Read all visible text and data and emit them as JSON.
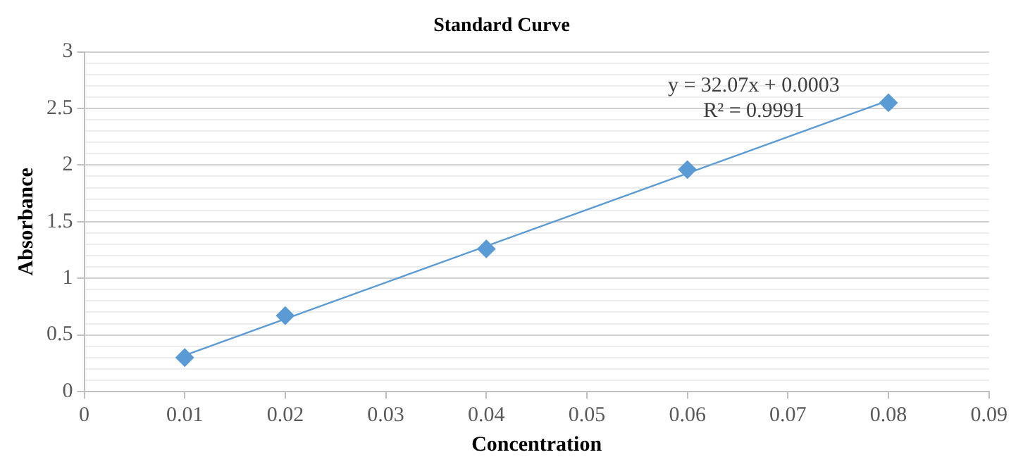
{
  "chart_data": {
    "type": "scatter",
    "title": "Standard Curve",
    "xlabel": "Concentration",
    "ylabel": "Absorbance",
    "annotations": [
      "y = 32.07x + 0.0003",
      "R² = 0.9991"
    ],
    "series": [
      {
        "color": "#5b9bd5",
        "marker": "diamond",
        "x": [
          0.01,
          0.02,
          0.04,
          0.06,
          0.08
        ],
        "values": [
          0.3,
          0.67,
          1.26,
          1.96,
          2.55
        ]
      },
      {
        "type": "line",
        "color": "#5b9bd5",
        "marker": "none",
        "line_style": "solid",
        "x": [
          0.01,
          0.08
        ],
        "values": [
          0.32,
          2.57
        ]
      }
    ],
    "xlim": [
      0,
      0.09
    ],
    "xticks": [
      0,
      0.01,
      0.02,
      0.03,
      0.04,
      0.05,
      0.06,
      0.07,
      0.08,
      0.09
    ],
    "ylim": [
      0,
      3
    ],
    "yticks": [
      0,
      {
        "value": 0.1,
        "label": null
      },
      {
        "value": 0.2,
        "label": null
      },
      {
        "value": 0.3,
        "label": null
      },
      {
        "value": 0.4,
        "label": null
      },
      0.5,
      {
        "value": 0.6,
        "label": null
      },
      {
        "value": 0.7,
        "label": null
      },
      {
        "value": 0.8,
        "label": null
      },
      {
        "value": 0.9,
        "label": null
      },
      1,
      {
        "value": 1.1,
        "label": null
      },
      {
        "value": 1.2,
        "label": null
      },
      {
        "value": 1.3,
        "label": null
      },
      {
        "value": 1.4,
        "label": null
      },
      1.5,
      {
        "value": 1.6,
        "label": null
      },
      {
        "value": 1.7,
        "label": null
      },
      {
        "value": 1.8,
        "label": null
      },
      {
        "value": 1.9,
        "label": null
      },
      2,
      {
        "value": 2.1,
        "label": null
      },
      {
        "value": 2.2,
        "label": null
      },
      {
        "value": 2.3,
        "label": null
      },
      {
        "value": 2.4,
        "label": null
      },
      2.5,
      {
        "value": 2.6,
        "label": null
      },
      {
        "value": 2.7,
        "label": null
      },
      {
        "value": 2.8,
        "label": null
      },
      {
        "value": 2.9,
        "label": null
      },
      3
    ],
    "grid": "y",
    "legend": false
  }
}
